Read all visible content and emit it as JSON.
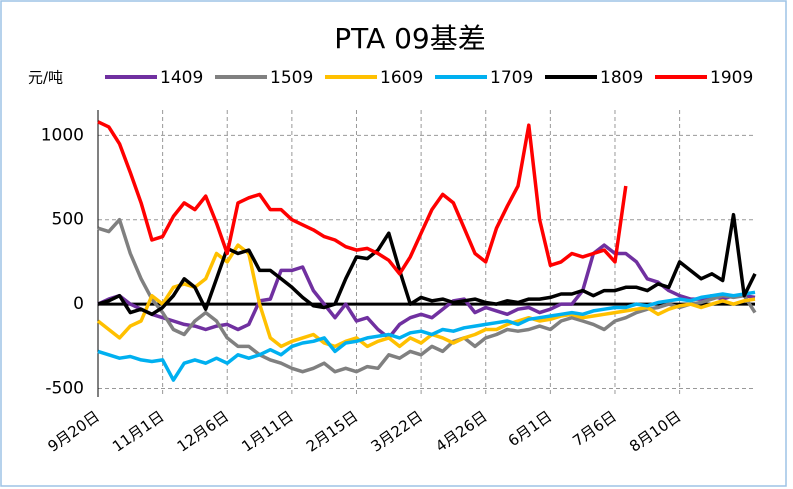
{
  "chart_data": {
    "type": "line",
    "title": "PTA 09基差",
    "ylabel": "元/吨",
    "categories": [
      "9月20日",
      null,
      null,
      null,
      null,
      null,
      "11月1日",
      null,
      null,
      null,
      null,
      null,
      "12月6日",
      null,
      null,
      null,
      null,
      null,
      "1月11日",
      null,
      null,
      null,
      null,
      null,
      "2月15日",
      null,
      null,
      null,
      null,
      null,
      "3月22日",
      null,
      null,
      null,
      null,
      null,
      "4月26日",
      null,
      null,
      null,
      null,
      null,
      "6月1日",
      null,
      null,
      null,
      null,
      null,
      "7月6日",
      null,
      null,
      null,
      null,
      null,
      "8月10日",
      null,
      null,
      null,
      null,
      null,
      null,
      null
    ],
    "series": [
      {
        "name": "1409",
        "color": "#7030a0",
        "values": [
          0,
          30,
          50,
          0,
          -30,
          -60,
          -80,
          -100,
          -120,
          -130,
          -150,
          -130,
          -120,
          -150,
          -120,
          20,
          30,
          200,
          200,
          220,
          80,
          0,
          -80,
          0,
          -100,
          -80,
          -150,
          -200,
          -120,
          -80,
          -60,
          -80,
          -30,
          20,
          30,
          -50,
          -20,
          -40,
          -60,
          -30,
          -20,
          -50,
          -30,
          0,
          0,
          80,
          300,
          350,
          300,
          300,
          250,
          150,
          130,
          80,
          50,
          30,
          30,
          50,
          30,
          50,
          50,
          40
        ]
      },
      {
        "name": "1509",
        "color": "#808080",
        "values": [
          450,
          430,
          500,
          300,
          150,
          30,
          -50,
          -150,
          -180,
          -100,
          -50,
          -100,
          -200,
          -250,
          -250,
          -300,
          -330,
          -350,
          -380,
          -400,
          -380,
          -350,
          -400,
          -380,
          -400,
          -370,
          -380,
          -300,
          -320,
          -280,
          -300,
          -250,
          -280,
          -220,
          -200,
          -250,
          -200,
          -180,
          -150,
          -160,
          -150,
          -130,
          -150,
          -100,
          -80,
          -100,
          -120,
          -150,
          -100,
          -80,
          -50,
          -30,
          -20,
          0,
          -20,
          0,
          10,
          30,
          50,
          40,
          50,
          -50
        ]
      },
      {
        "name": "1609",
        "color": "#ffc000",
        "values": [
          -100,
          -150,
          -200,
          -130,
          -100,
          50,
          0,
          100,
          120,
          100,
          150,
          300,
          250,
          350,
          300,
          0,
          -200,
          -250,
          -220,
          -200,
          -180,
          -230,
          -250,
          -220,
          -200,
          -250,
          -220,
          -200,
          -250,
          -200,
          -230,
          -180,
          -200,
          -230,
          -200,
          -180,
          -150,
          -150,
          -120,
          -100,
          -80,
          -100,
          -90,
          -70,
          -60,
          -80,
          -70,
          -60,
          -50,
          -40,
          -30,
          -20,
          -60,
          -30,
          -10,
          0,
          -20,
          0,
          20,
          0,
          20,
          30
        ]
      },
      {
        "name": "1709",
        "color": "#00b0f0",
        "values": [
          -280,
          -300,
          -320,
          -310,
          -330,
          -340,
          -330,
          -450,
          -350,
          -330,
          -350,
          -320,
          -350,
          -300,
          -320,
          -300,
          -270,
          -300,
          -250,
          -230,
          -220,
          -200,
          -280,
          -230,
          -220,
          -200,
          -190,
          -180,
          -200,
          -170,
          -160,
          -180,
          -150,
          -160,
          -140,
          -130,
          -120,
          -110,
          -100,
          -120,
          -90,
          -80,
          -70,
          -60,
          -50,
          -60,
          -40,
          -30,
          -20,
          -20,
          0,
          -10,
          10,
          20,
          30,
          20,
          40,
          50,
          60,
          50,
          60,
          70
        ]
      },
      {
        "name": "1809",
        "color": "#000000",
        "values": [
          0,
          20,
          50,
          -50,
          -30,
          -60,
          -20,
          50,
          150,
          100,
          -30,
          150,
          330,
          300,
          320,
          200,
          200,
          150,
          100,
          40,
          -10,
          -20,
          0,
          150,
          280,
          270,
          320,
          420,
          200,
          0,
          40,
          20,
          30,
          10,
          20,
          30,
          10,
          0,
          20,
          10,
          30,
          30,
          40,
          60,
          60,
          80,
          50,
          80,
          80,
          100,
          100,
          80,
          120,
          100,
          250,
          200,
          150,
          180,
          140,
          530,
          50,
          180
        ]
      },
      {
        "name": "1909",
        "color": "#ff0000",
        "values": [
          1080,
          1050,
          950,
          780,
          600,
          380,
          400,
          520,
          600,
          560,
          640,
          480,
          300,
          600,
          630,
          650,
          560,
          560,
          500,
          470,
          440,
          400,
          380,
          340,
          320,
          330,
          300,
          260,
          180,
          280,
          420,
          560,
          650,
          600,
          450,
          300,
          250,
          450,
          580,
          700,
          1060,
          500,
          230,
          250,
          300,
          280,
          300,
          320,
          250,
          700,
          null,
          null,
          null,
          null,
          null,
          null,
          null,
          null,
          null,
          null,
          null,
          null
        ]
      }
    ],
    "ylim": [
      -550,
      1150
    ],
    "yticks": [
      -500,
      0,
      500,
      1000
    ],
    "grid": true
  }
}
